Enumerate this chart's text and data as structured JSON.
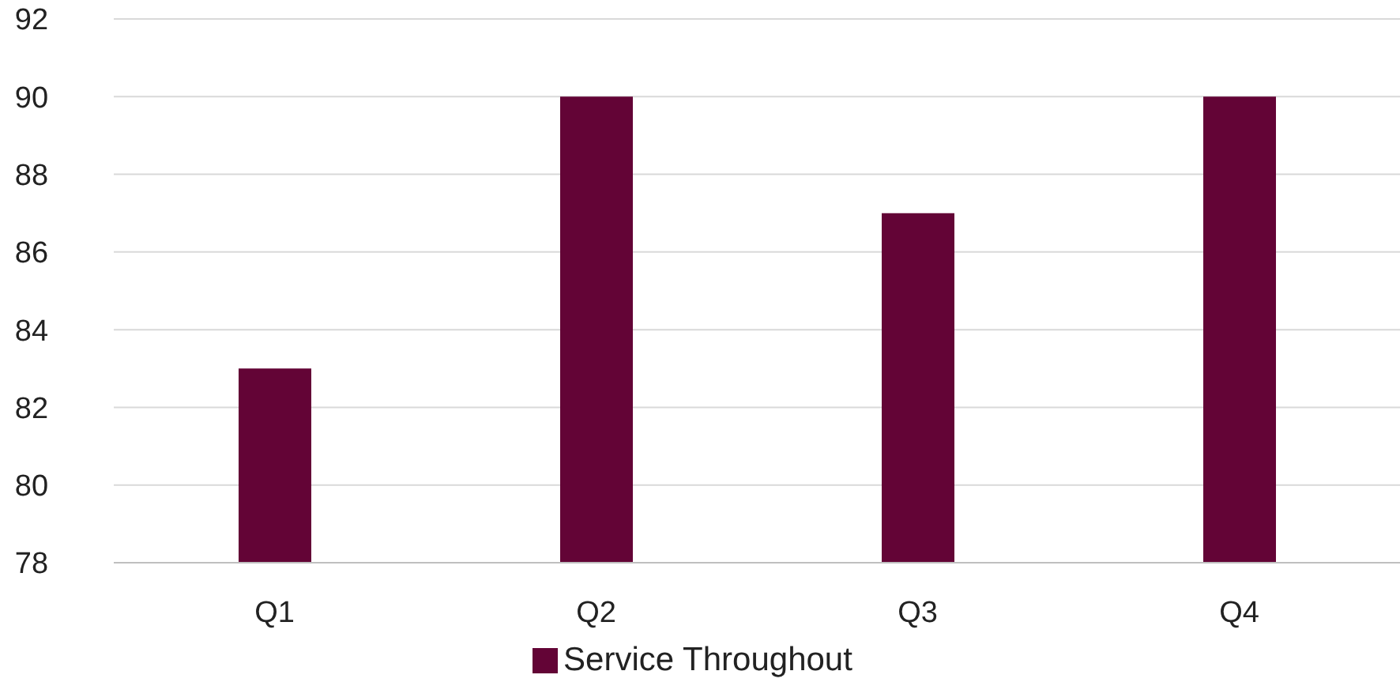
{
  "chart_data": {
    "type": "bar",
    "categories": [
      "Q1",
      "Q2",
      "Q3",
      "Q4"
    ],
    "series": [
      {
        "name": "Service Throughout",
        "color": "#630436",
        "values": [
          83,
          90,
          87,
          90
        ]
      }
    ],
    "ylim": [
      78,
      92
    ],
    "yticks": [
      78,
      80,
      82,
      84,
      86,
      88,
      90,
      92
    ],
    "grid": "y",
    "legend": "bottom"
  }
}
